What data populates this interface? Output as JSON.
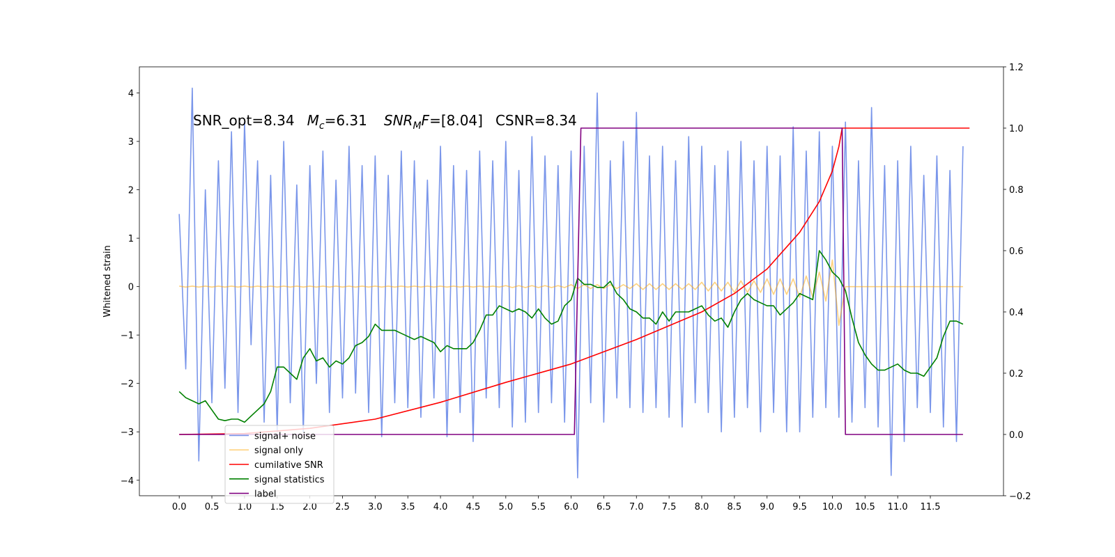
{
  "chart_data": {
    "type": "line",
    "ylabel": "Whitened strain",
    "annotation": [
      {
        "text": "SNR_opt=8.34"
      },
      {
        "text": "M",
        "style": "italic"
      },
      {
        "text": "c",
        "style": "sub"
      },
      {
        "text": "=6.31"
      },
      {
        "text": "SNR",
        "style": "italic"
      },
      {
        "text": "M",
        "style": "sub"
      },
      {
        "text": "F",
        "style": "italic"
      },
      {
        "text": "=[8.04]"
      },
      {
        "text": "CSNR=8.34"
      }
    ],
    "xlim": [
      -0.61,
      12.62
    ],
    "xticks": [
      {
        "value": 0,
        "label": "0.0"
      },
      0.5,
      {
        "value": 1,
        "label": "1.0"
      },
      1.5,
      {
        "value": 2,
        "label": "2.0"
      },
      2.5,
      {
        "value": 3,
        "label": "3.0"
      },
      3.5,
      {
        "value": 4,
        "label": "4.0"
      },
      4.5,
      {
        "value": 5,
        "label": "5.0"
      },
      5.5,
      {
        "value": 6,
        "label": "6.0"
      },
      6.5,
      {
        "value": 7,
        "label": "7.0"
      },
      7.5,
      {
        "value": 8,
        "label": "8.0"
      },
      8.5,
      {
        "value": 9,
        "label": "9.0"
      },
      9.5,
      {
        "value": 10,
        "label": "10.0"
      },
      10.5,
      {
        "value": 11,
        "label": "11.0"
      },
      11.5
    ],
    "ylim": [
      -4.32,
      4.54
    ],
    "yticks": [
      {
        "value": -4,
        "label": "−4"
      },
      {
        "value": -3,
        "label": "−3"
      },
      {
        "value": -2,
        "label": "−2"
      },
      {
        "value": -1,
        "label": "−1"
      },
      0,
      1,
      2,
      3,
      4
    ],
    "y2lim": [
      -0.2,
      1.2
    ],
    "y2ticks": [
      {
        "value": -0.2,
        "label": "−0.2"
      },
      {
        "value": 0,
        "label": "0.0"
      },
      0.2,
      0.4,
      0.6,
      0.8,
      {
        "value": 1,
        "label": "1.0"
      },
      1.2
    ],
    "legend": "lower left",
    "x": [
      0.0,
      0.1,
      0.2,
      0.3,
      0.4,
      0.5,
      0.6,
      0.7,
      0.8,
      0.9,
      1.0,
      1.1,
      1.2,
      1.3,
      1.4,
      1.5,
      1.6,
      1.7,
      1.8,
      1.9,
      2.0,
      2.1,
      2.2,
      2.3,
      2.4,
      2.5,
      2.6,
      2.7,
      2.8,
      2.9,
      3.0,
      3.1,
      3.2,
      3.3,
      3.4,
      3.5,
      3.6,
      3.7,
      3.8,
      3.9,
      4.0,
      4.1,
      4.2,
      4.3,
      4.4,
      4.5,
      4.6,
      4.7,
      4.8,
      4.9,
      5.0,
      5.1,
      5.2,
      5.3,
      5.4,
      5.5,
      5.6,
      5.7,
      5.8,
      5.9,
      6.0,
      6.1,
      6.2,
      6.3,
      6.4,
      6.5,
      6.6,
      6.7,
      6.8,
      6.9,
      7.0,
      7.1,
      7.2,
      7.3,
      7.4,
      7.5,
      7.6,
      7.7,
      7.8,
      7.9,
      8.0,
      8.1,
      8.2,
      8.3,
      8.4,
      8.5,
      8.6,
      8.7,
      8.8,
      8.9,
      9.0,
      9.1,
      9.2,
      9.3,
      9.4,
      9.5,
      9.6,
      9.7,
      9.8,
      9.9,
      10.0,
      10.1,
      10.2,
      10.3,
      10.4,
      10.5,
      10.6,
      10.7,
      10.8,
      10.9,
      11.0,
      11.1,
      11.2,
      11.3,
      11.4,
      11.5,
      11.6,
      11.7,
      11.8,
      11.9,
      12.0
    ],
    "series": [
      {
        "name": "signal+ noise",
        "color": "#4169e1",
        "alpha": 0.7,
        "values": [
          1.5,
          -1.7,
          4.1,
          -3.6,
          2.0,
          -2.4,
          2.6,
          -2.1,
          3.2,
          -2.6,
          3.4,
          -1.2,
          2.6,
          -2.8,
          2.3,
          -3.0,
          3.0,
          -2.4,
          2.1,
          -3.0,
          2.5,
          -2.0,
          2.8,
          -2.6,
          2.2,
          -2.3,
          2.9,
          -2.2,
          2.5,
          -2.6,
          2.7,
          -3.1,
          2.3,
          -2.4,
          2.8,
          -2.5,
          2.6,
          -2.7,
          2.2,
          -2.3,
          2.9,
          -3.1,
          2.5,
          -2.6,
          2.4,
          -3.2,
          2.8,
          -2.3,
          2.6,
          -2.5,
          3.0,
          -2.9,
          2.4,
          -2.8,
          3.1,
          -2.6,
          2.7,
          -2.4,
          2.5,
          -2.8,
          2.8,
          -3.95,
          2.9,
          -2.4,
          4.0,
          -2.8,
          2.6,
          -2.3,
          3.0,
          -2.5,
          3.6,
          -2.6,
          2.7,
          -2.5,
          2.9,
          -2.7,
          2.6,
          -2.9,
          3.1,
          -2.4,
          2.9,
          -2.6,
          2.5,
          -3.0,
          2.8,
          -2.7,
          3.0,
          -2.5,
          2.6,
          -3.0,
          2.9,
          -2.6,
          2.7,
          -3.0,
          3.3,
          -3.0,
          2.8,
          -2.7,
          3.2,
          -2.5,
          2.9,
          -2.7,
          3.4,
          -2.8,
          2.6,
          -2.5,
          3.7,
          -2.9,
          2.5,
          -3.9,
          2.6,
          -3.2,
          2.9,
          -2.5,
          2.3,
          -2.6,
          2.7,
          -2.9,
          2.4,
          -3.2,
          2.9
        ]
      },
      {
        "name": "signal only",
        "color": "#ffa500",
        "alpha": 0.5,
        "values": [
          0.01,
          -0.01,
          0.01,
          -0.01,
          0.01,
          -0.01,
          0.01,
          -0.01,
          0.01,
          -0.01,
          0.01,
          -0.01,
          0.01,
          -0.01,
          0.01,
          -0.01,
          0.01,
          -0.01,
          0.01,
          -0.01,
          0.01,
          -0.01,
          0.01,
          -0.01,
          0.01,
          -0.01,
          0.01,
          -0.01,
          0.01,
          -0.01,
          0.01,
          -0.01,
          0.01,
          -0.01,
          0.01,
          -0.01,
          0.01,
          -0.01,
          0.01,
          -0.01,
          0.01,
          -0.01,
          0.01,
          -0.01,
          0.01,
          -0.01,
          0.01,
          -0.01,
          0.01,
          -0.01,
          0.02,
          -0.02,
          0.02,
          -0.02,
          0.02,
          -0.02,
          0.02,
          -0.02,
          0.02,
          -0.02,
          0.04,
          -0.04,
          0.04,
          -0.04,
          0.04,
          -0.04,
          0.04,
          -0.04,
          0.04,
          -0.04,
          0.06,
          -0.06,
          0.06,
          -0.06,
          0.06,
          -0.06,
          0.06,
          -0.06,
          0.06,
          -0.06,
          0.09,
          -0.09,
          0.09,
          -0.09,
          0.09,
          -0.12,
          0.12,
          -0.12,
          0.12,
          -0.12,
          0.16,
          -0.16,
          0.16,
          -0.16,
          0.16,
          -0.22,
          0.22,
          -0.22,
          0.3,
          -0.3,
          0.55,
          -0.8,
          0,
          0,
          0,
          0,
          0,
          0,
          0,
          0,
          0,
          0,
          0,
          0,
          0,
          0,
          0,
          0,
          0,
          0,
          0
        ]
      },
      {
        "name": "cumilative SNR",
        "color": "#ff0000",
        "axis": "y2",
        "x": [
          0,
          1,
          2,
          3,
          4,
          5,
          6,
          7,
          8,
          8.5,
          9,
          9.5,
          9.8,
          10,
          10.1,
          10.15,
          12.1
        ],
        "values": [
          0,
          0.003,
          0.02,
          0.05,
          0.105,
          0.17,
          0.23,
          0.31,
          0.4,
          0.46,
          0.54,
          0.66,
          0.76,
          0.86,
          0.94,
          1.0,
          1.0
        ]
      },
      {
        "name": "signal statistics",
        "color": "#008000",
        "axis": "y2",
        "values": [
          0.14,
          0.12,
          0.11,
          0.1,
          0.11,
          0.08,
          0.05,
          0.045,
          0.05,
          0.05,
          0.04,
          0.06,
          0.08,
          0.1,
          0.14,
          0.22,
          0.22,
          0.2,
          0.18,
          0.25,
          0.28,
          0.24,
          0.25,
          0.22,
          0.24,
          0.23,
          0.25,
          0.29,
          0.3,
          0.32,
          0.36,
          0.34,
          0.34,
          0.34,
          0.33,
          0.32,
          0.31,
          0.32,
          0.31,
          0.3,
          0.27,
          0.29,
          0.28,
          0.28,
          0.28,
          0.3,
          0.34,
          0.39,
          0.39,
          0.42,
          0.41,
          0.4,
          0.41,
          0.4,
          0.38,
          0.41,
          0.38,
          0.36,
          0.37,
          0.42,
          0.44,
          0.51,
          0.49,
          0.49,
          0.48,
          0.48,
          0.5,
          0.46,
          0.44,
          0.41,
          0.4,
          0.38,
          0.38,
          0.36,
          0.4,
          0.37,
          0.4,
          0.4,
          0.4,
          0.41,
          0.42,
          0.39,
          0.37,
          0.38,
          0.35,
          0.4,
          0.44,
          0.46,
          0.44,
          0.43,
          0.42,
          0.42,
          0.39,
          0.41,
          0.43,
          0.46,
          0.45,
          0.44,
          0.6,
          0.57,
          0.53,
          0.51,
          0.47,
          0.38,
          0.3,
          0.26,
          0.23,
          0.21,
          0.21,
          0.22,
          0.23,
          0.21,
          0.2,
          0.2,
          0.19,
          0.22,
          0.25,
          0.32,
          0.37,
          0.37,
          0.36
        ]
      },
      {
        "name": "label",
        "color": "#800080",
        "axis": "y2",
        "x": [
          0,
          6.05,
          6.15,
          10.15,
          10.2,
          12.0
        ],
        "values": [
          0,
          0,
          1,
          1,
          0,
          0
        ]
      }
    ]
  }
}
